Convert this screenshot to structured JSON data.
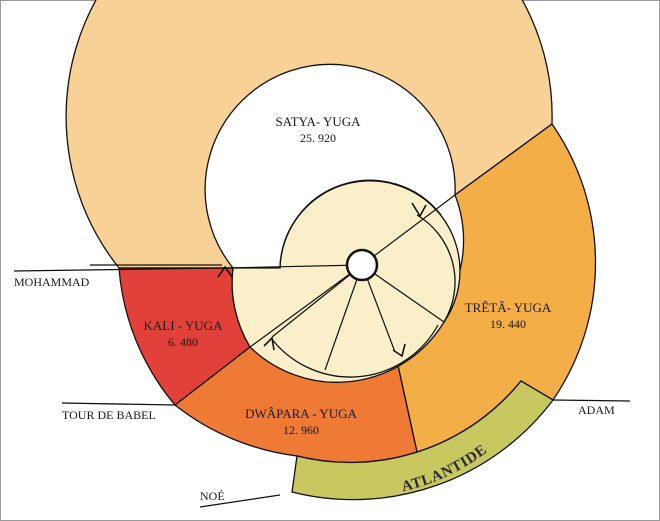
{
  "segments": [
    {
      "name": "SATYA- YUGA",
      "value": "25. 920",
      "color": "#f7d195"
    },
    {
      "name": "TRÊTÂ- YUGA",
      "value": "19. 440",
      "color": "#f4ae48"
    },
    {
      "name": "DWÂPARA - YUGA",
      "value": "12. 960",
      "color": "#ee7a36"
    },
    {
      "name": "KALI - YUGA",
      "value": "6. 480",
      "color": "#e2413a"
    }
  ],
  "atlantide": {
    "label": "ATLANTIDE",
    "color": "#c8c860"
  },
  "inner_color": "#fbefc9",
  "markers": {
    "mohammad": "MOHAMMAD",
    "tour_de_babel": "TOUR DE BABEL",
    "noe": "NOÉ",
    "adam": "ADAM"
  }
}
